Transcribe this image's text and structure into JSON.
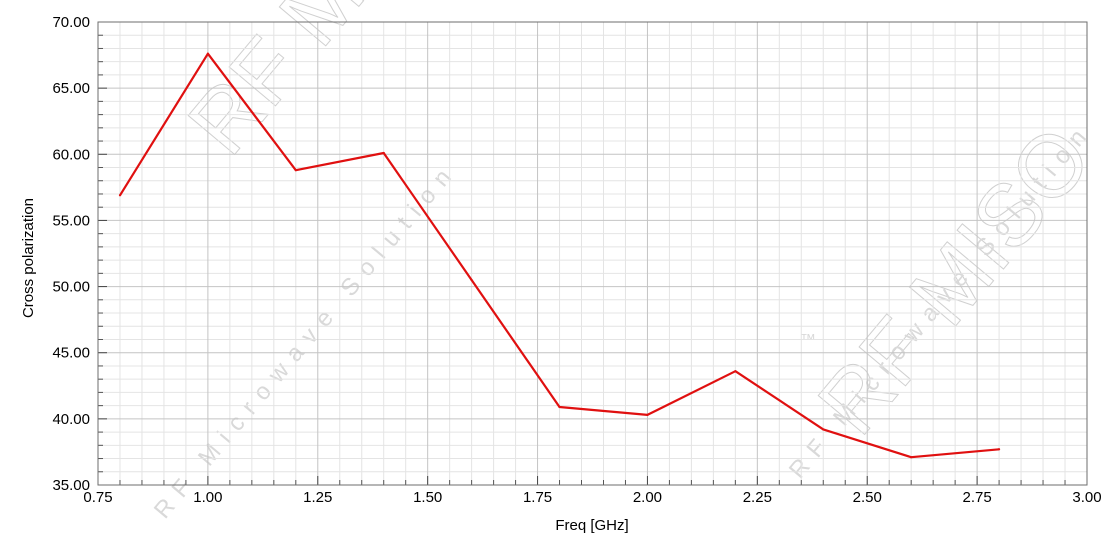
{
  "chart_data": {
    "type": "line",
    "title": "",
    "xlabel": "Freq [GHz]",
    "ylabel": "Cross polarization",
    "xlim": [
      0.75,
      3.0
    ],
    "ylim": [
      35.0,
      70.0
    ],
    "x_ticks": [
      "0.75",
      "1.00",
      "1.25",
      "1.50",
      "1.75",
      "2.00",
      "2.25",
      "2.50",
      "2.75",
      "3.00"
    ],
    "y_ticks": [
      "35.00",
      "40.00",
      "45.00",
      "50.00",
      "55.00",
      "60.00",
      "65.00",
      "70.00"
    ],
    "grid": true,
    "series": [
      {
        "color": "#e01010",
        "x": [
          0.8,
          1.0,
          1.2,
          1.4,
          1.6,
          1.8,
          2.0,
          2.2,
          2.4,
          2.6,
          2.8
        ],
        "y": [
          56.9,
          67.6,
          58.8,
          60.1,
          50.5,
          40.9,
          40.3,
          43.6,
          39.2,
          37.1,
          37.7
        ]
      }
    ]
  },
  "watermark": {
    "brand": "RF MISO",
    "tagline": "RF Microwave Solution",
    "tm": "™"
  }
}
